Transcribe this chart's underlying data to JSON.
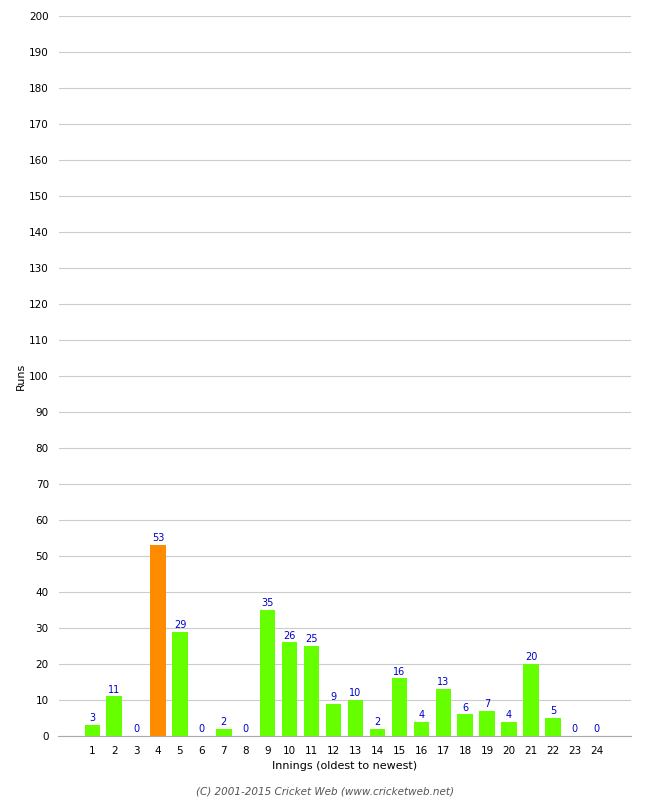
{
  "xlabel": "Innings (oldest to newest)",
  "ylabel": "Runs",
  "categories": [
    1,
    2,
    3,
    4,
    5,
    6,
    7,
    8,
    9,
    10,
    11,
    12,
    13,
    14,
    15,
    16,
    17,
    18,
    19,
    20,
    21,
    22,
    23,
    24
  ],
  "values": [
    3,
    11,
    0,
    53,
    29,
    0,
    2,
    0,
    35,
    26,
    25,
    9,
    10,
    2,
    16,
    4,
    13,
    6,
    7,
    4,
    20,
    5,
    0,
    0
  ],
  "bar_colors": [
    "#66ff00",
    "#66ff00",
    "#66ff00",
    "#ff8c00",
    "#66ff00",
    "#66ff00",
    "#66ff00",
    "#66ff00",
    "#66ff00",
    "#66ff00",
    "#66ff00",
    "#66ff00",
    "#66ff00",
    "#66ff00",
    "#66ff00",
    "#66ff00",
    "#66ff00",
    "#66ff00",
    "#66ff00",
    "#66ff00",
    "#66ff00",
    "#66ff00",
    "#66ff00",
    "#66ff00"
  ],
  "ylim": [
    0,
    200
  ],
  "yticks": [
    0,
    10,
    20,
    30,
    40,
    50,
    60,
    70,
    80,
    90,
    100,
    110,
    120,
    130,
    140,
    150,
    160,
    170,
    180,
    190,
    200
  ],
  "label_color": "#0000cc",
  "label_fontsize": 7,
  "axis_fontsize": 7.5,
  "ylabel_fontsize": 8,
  "background_color": "#ffffff",
  "grid_color": "#cccccc",
  "footer": "(C) 2001-2015 Cricket Web (www.cricketweb.net)"
}
